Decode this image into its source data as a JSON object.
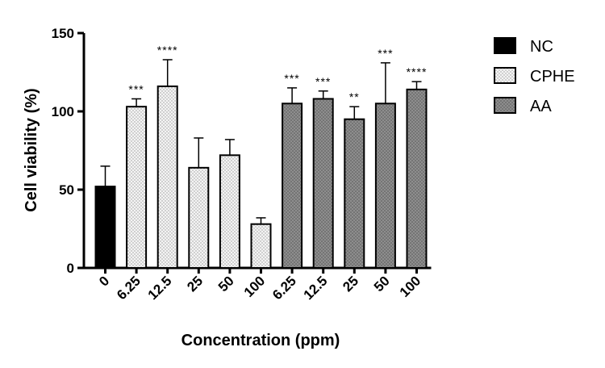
{
  "chart_data": {
    "type": "bar",
    "ylabel": "Cell viability (%)",
    "xlabel": "Concentration (ppm)",
    "ylim": [
      0,
      150
    ],
    "yticks": [
      0,
      50,
      100,
      150
    ],
    "legend_position": "top-right",
    "groups": [
      {
        "name": "NC",
        "color": "#000000",
        "pattern": "solid"
      },
      {
        "name": "CPHE",
        "color": "#eeeeee",
        "pattern": "light-dotted"
      },
      {
        "name": "AA",
        "color": "#8a8a8a",
        "pattern": "dark-dotted"
      }
    ],
    "bars": [
      {
        "category": "0",
        "group": "NC",
        "value": 52,
        "error": 13,
        "significance": ""
      },
      {
        "category": "6.25",
        "group": "CPHE",
        "value": 103,
        "error": 5,
        "significance": "***"
      },
      {
        "category": "12.5",
        "group": "CPHE",
        "value": 116,
        "error": 17,
        "significance": "****"
      },
      {
        "category": "25",
        "group": "CPHE",
        "value": 64,
        "error": 19,
        "significance": ""
      },
      {
        "category": "50",
        "group": "CPHE",
        "value": 72,
        "error": 10,
        "significance": ""
      },
      {
        "category": "100",
        "group": "CPHE",
        "value": 28,
        "error": 4,
        "significance": ""
      },
      {
        "category": "6.25",
        "group": "AA",
        "value": 105,
        "error": 10,
        "significance": "***"
      },
      {
        "category": "12.5",
        "group": "AA",
        "value": 108,
        "error": 5,
        "significance": "***"
      },
      {
        "category": "25",
        "group": "AA",
        "value": 95,
        "error": 8,
        "significance": "**"
      },
      {
        "category": "50",
        "group": "AA",
        "value": 105,
        "error": 26,
        "significance": "***"
      },
      {
        "category": "100",
        "group": "AA",
        "value": 114,
        "error": 5,
        "significance": "****"
      }
    ]
  }
}
